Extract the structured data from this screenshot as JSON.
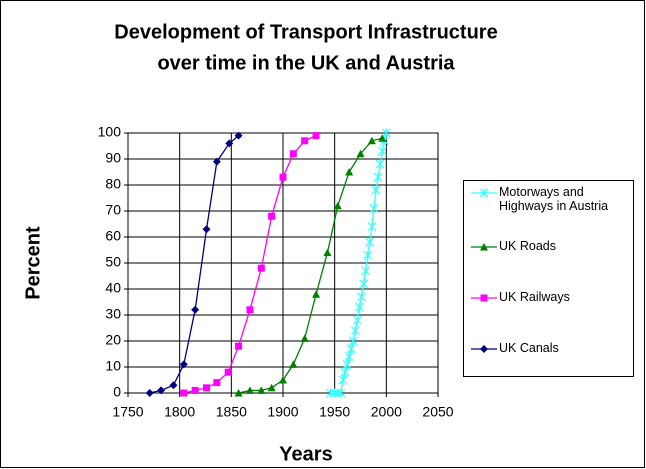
{
  "chart_data": {
    "type": "line",
    "title": [
      "Development of Transport Infrastructure",
      "over time in the UK and Austria"
    ],
    "x_label": "Years",
    "y_label": "Percent",
    "xlim": [
      1750,
      2050
    ],
    "xticks": [
      1750,
      1800,
      1850,
      1900,
      1950,
      2000,
      2050
    ],
    "ylim": [
      0,
      100
    ],
    "yticks": [
      0,
      10,
      20,
      30,
      40,
      50,
      60,
      70,
      80,
      90,
      100
    ],
    "grid": true,
    "legend": "right",
    "series": [
      {
        "name": "Motorways and Highways in Austria",
        "color": "#33ffff",
        "marker": "star",
        "x": [
          1946,
          1950,
          1953,
          1956,
          1958,
          1960,
          1962,
          1964,
          1966,
          1968,
          1970,
          1972,
          1974,
          1976,
          1978,
          1980,
          1982,
          1984,
          1986,
          1988,
          1990,
          1992,
          1994,
          1996,
          1998,
          2000
        ],
        "values": [
          0,
          0,
          0,
          0,
          5,
          8,
          11,
          14,
          17,
          20,
          24,
          28,
          33,
          37,
          42,
          47,
          53,
          58,
          64,
          71,
          78,
          83,
          88,
          93,
          97,
          100
        ]
      },
      {
        "name": "UK Roads",
        "color": "#008000",
        "marker": "triangle",
        "x": [
          1857,
          1868,
          1879,
          1889,
          1900,
          1910,
          1921,
          1932,
          1943,
          1953,
          1964,
          1975,
          1986,
          1996
        ],
        "values": [
          0,
          1,
          1,
          2,
          5,
          11,
          21,
          38,
          54,
          72,
          85,
          92,
          97,
          98
        ]
      },
      {
        "name": "UK Railways",
        "color": "#ff00ff",
        "marker": "square",
        "x": [
          1804,
          1815,
          1826,
          1836,
          1847,
          1857,
          1868,
          1879,
          1889,
          1900,
          1910,
          1921,
          1932
        ],
        "values": [
          0,
          1,
          2,
          4,
          8,
          18,
          32,
          48,
          68,
          83,
          92,
          97,
          99
        ]
      },
      {
        "name": "UK Canals",
        "color": "#000080",
        "marker": "diamond",
        "x": [
          1771,
          1782,
          1794,
          1804,
          1815,
          1826,
          1836,
          1848,
          1857
        ],
        "values": [
          0,
          1,
          3,
          11,
          32,
          63,
          89,
          96,
          99
        ]
      }
    ]
  }
}
